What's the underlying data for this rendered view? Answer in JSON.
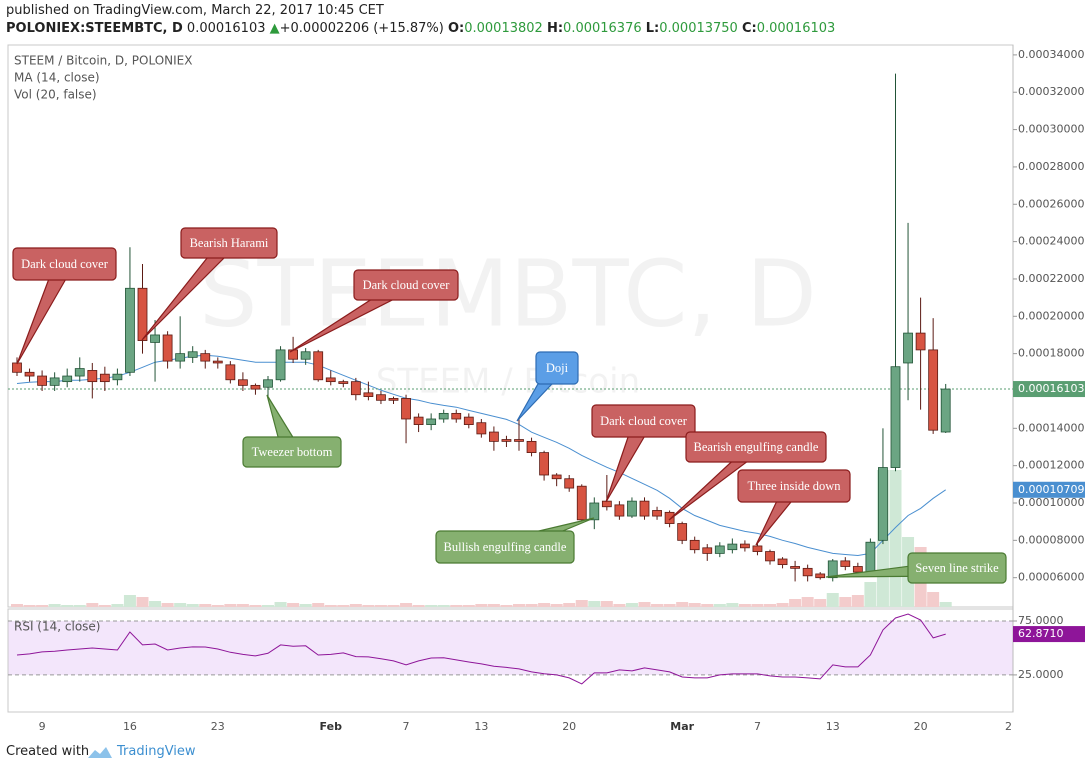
{
  "header": {
    "published": "published on TradingView.com, March 22, 2017 10:45 CET",
    "symbol": "POLONIEX:STEEMBTC, D",
    "last": "0.00016103",
    "arrow": "▲",
    "change": "+0.00002206 (+15.87%)",
    "ohlc": [
      {
        "label": "O:",
        "value": "0.00013802"
      },
      {
        "label": "H:",
        "value": "0.00016376"
      },
      {
        "label": "L:",
        "value": "0.00013750"
      },
      {
        "label": "C:",
        "value": "0.00016103"
      }
    ]
  },
  "watermark": {
    "main": "STEEMBTC, D",
    "sub": "STEEM / Bitcoin"
  },
  "chart_data": {
    "type": "candlestick",
    "title": "STEEM / Bitcoin, D, POLONIEX",
    "up_color": "#6ba583",
    "up_border": "#225437",
    "down_color": "#d75442",
    "down_border": "#5b1a13",
    "categories": [
      null,
      null,
      "9",
      null,
      null,
      null,
      null,
      null,
      null,
      "16",
      null,
      null,
      null,
      null,
      null,
      null,
      "23",
      null,
      null,
      null,
      null,
      null,
      null,
      null,
      null,
      "Feb",
      null,
      null,
      null,
      null,
      null,
      "7",
      null,
      null,
      null,
      null,
      null,
      "13",
      null,
      null,
      null,
      null,
      null,
      null,
      "20",
      null,
      null,
      null,
      null,
      null,
      null,
      null,
      null,
      "Mar",
      null,
      null,
      null,
      null,
      null,
      "7",
      null,
      null,
      null,
      null,
      null,
      "13",
      null,
      null,
      null,
      null,
      null,
      null,
      "20",
      null,
      null,
      null,
      null,
      null,
      null,
      "2"
    ],
    "open": [
      0.000175,
      0.00017,
      0.000168,
      0.000163,
      0.000165,
      0.000168,
      0.000171,
      0.000169,
      0.000166,
      0.00017,
      0.000215,
      0.000186,
      0.00019,
      0.000176,
      0.000178,
      0.00018,
      0.000176,
      0.000174,
      0.000166,
      0.000163,
      0.000162,
      0.000166,
      0.000182,
      0.000177,
      0.000181,
      0.000167,
      0.000165,
      0.000165,
      0.000159,
      0.000158,
      0.000156,
      0.000156,
      0.000146,
      0.000142,
      0.000145,
      0.000148,
      0.000146,
      0.000143,
      0.000138,
      0.000134,
      0.000134,
      0.000133,
      0.000127,
      0.000115,
      0.000113,
      0.000109,
      9.1e-05,
      0.000101,
      9.9e-05,
      9.3e-05,
      0.000101,
      9.6e-05,
      9.5e-05,
      8.9e-05,
      8e-05,
      7.6e-05,
      7.3e-05,
      7.5e-05,
      7.8e-05,
      7.7e-05,
      7.4e-05,
      7e-05,
      6.6e-05,
      6.5e-05,
      6.2e-05,
      6e-05,
      6.9e-05,
      6.6e-05,
      6.3e-05,
      8e-05,
      0.000119,
      0.000175,
      0.000191,
      0.000182,
      0.00013802,
      null,
      null,
      null,
      null,
      null
    ],
    "high": [
      0.000178,
      0.000172,
      0.000171,
      0.00017,
      0.000172,
      0.000178,
      0.000175,
      0.000173,
      0.000172,
      0.000237,
      0.000228,
      0.000198,
      0.000192,
      0.0002,
      0.000184,
      0.000182,
      0.000178,
      0.000176,
      0.00017,
      0.000164,
      0.000168,
      0.000184,
      0.000189,
      0.000183,
      0.000182,
      0.000171,
      0.000166,
      0.000167,
      0.000165,
      0.00016,
      0.000157,
      0.000158,
      0.000148,
      0.000148,
      0.00015,
      0.00015,
      0.000148,
      0.000145,
      0.000141,
      0.000136,
      0.000145,
      0.000135,
      0.000128,
      0.000116,
      0.000115,
      0.00011,
      0.000103,
      0.000115,
      0.000101,
      0.000103,
      0.000103,
      9.8e-05,
      9.6e-05,
      9e-05,
      8.2e-05,
      7.8e-05,
      7.9e-05,
      8.1e-05,
      8e-05,
      7.9e-05,
      7.5e-05,
      7.1e-05,
      6.9e-05,
      6.7e-05,
      6.3e-05,
      7e-05,
      7.1e-05,
      6.8e-05,
      8.1e-05,
      0.00014,
      0.00033,
      0.00025,
      0.00021,
      0.000199,
      0.00016376,
      null,
      null,
      null,
      null,
      null
    ],
    "low": [
      0.000168,
      0.000165,
      0.00016,
      0.00016,
      0.000162,
      0.000165,
      0.000156,
      0.00016,
      0.000163,
      0.000168,
      0.00018,
      0.000165,
      0.000172,
      0.000172,
      0.000175,
      0.000172,
      0.000172,
      0.000164,
      0.00016,
      0.000158,
      0.000157,
      0.000165,
      0.000175,
      0.000174,
      0.000165,
      0.000163,
      0.000162,
      0.000155,
      0.000155,
      0.000153,
      0.000153,
      0.000132,
      0.000138,
      0.000139,
      0.000143,
      0.000143,
      0.00014,
      0.000135,
      0.000128,
      0.00013,
      0.000128,
      0.000125,
      0.000112,
      0.000109,
      0.000106,
      9e-05,
      8.6e-05,
      9.6e-05,
      9.1e-05,
      9.2e-05,
      9.1e-05,
      9.1e-05,
      8.7e-05,
      7.8e-05,
      7.3e-05,
      6.9e-05,
      7.1e-05,
      7.3e-05,
      7.4e-05,
      7.2e-05,
      6.7e-05,
      6.5e-05,
      5.8e-05,
      5.8e-05,
      5.9e-05,
      5.8e-05,
      6.4e-05,
      6.1e-05,
      6.1e-05,
      7.8e-05,
      0.000117,
      0.000155,
      0.00015,
      0.000137,
      0.0001375,
      null,
      null,
      null,
      null,
      null
    ],
    "close": [
      0.00017,
      0.000168,
      0.000163,
      0.000167,
      0.000168,
      0.000172,
      0.000165,
      0.000165,
      0.000169,
      0.000215,
      0.000187,
      0.00019,
      0.000176,
      0.00018,
      0.000181,
      0.000176,
      0.000175,
      0.000166,
      0.000163,
      0.000161,
      0.000166,
      0.000182,
      0.000177,
      0.000181,
      0.000166,
      0.000165,
      0.000164,
      0.000158,
      0.000157,
      0.000155,
      0.000155,
      0.000145,
      0.000142,
      0.000145,
      0.000148,
      0.000145,
      0.000142,
      0.000137,
      0.000133,
      0.000133,
      0.000133,
      0.000127,
      0.000115,
      0.000113,
      0.000108,
      9.1e-05,
      0.0001,
      9.8e-05,
      9.3e-05,
      0.000101,
      9.3e-05,
      9.3e-05,
      8.9e-05,
      8e-05,
      7.5e-05,
      7.3e-05,
      7.7e-05,
      7.8e-05,
      7.6e-05,
      7.4e-05,
      6.9e-05,
      6.7e-05,
      6.5e-05,
      6.1e-05,
      6e-05,
      6.9e-05,
      6.6e-05,
      6.3e-05,
      7.9e-05,
      0.000119,
      0.000173,
      0.000191,
      0.000182,
      0.000139,
      0.00016103,
      null,
      null,
      null,
      null,
      null
    ],
    "ylim": [
      4.43e-05,
      0.0003453
    ],
    "yticks": [
      {
        "value": 6e-05,
        "label": "0.00006000"
      },
      {
        "value": 8e-05,
        "label": "0.00008000"
      },
      {
        "value": 0.0001,
        "label": "0.00010000"
      },
      {
        "value": 0.00012,
        "label": "0.00012000"
      },
      {
        "value": 0.00014,
        "label": "0.00014000"
      },
      {
        "value": 0.00016,
        "label": "0.00016000"
      },
      {
        "value": 0.00018,
        "label": "0.00018000"
      },
      {
        "value": 0.0002,
        "label": "0.00020000"
      },
      {
        "value": 0.00022,
        "label": "0.00022000"
      },
      {
        "value": 0.00024,
        "label": "0.00024000"
      },
      {
        "value": 0.00026,
        "label": "0.00026000"
      },
      {
        "value": 0.00028,
        "label": "0.00028000"
      },
      {
        "value": 0.0003,
        "label": "0.00030000"
      },
      {
        "value": 0.00032,
        "label": "0.00032000"
      },
      {
        "value": 0.00034,
        "label": "0.00034000"
      }
    ],
    "grid": false,
    "last_price": {
      "value": 0.00016103,
      "label": "0.00016103",
      "color": "#5a9e72"
    },
    "ma": {
      "name": "MA (14, close)",
      "color": "#4a8fd0",
      "last_label": {
        "value": 0.00010709,
        "label": "0.00010709"
      },
      "values": [
        0.000164,
        0.0001647,
        0.000165,
        0.000165,
        0.0001657,
        0.0001657,
        0.0001663,
        0.0001668,
        0.0001679,
        0.00017,
        0.0001727,
        0.0001754,
        0.0001765,
        0.0001775,
        0.0001786,
        0.0001791,
        0.0001786,
        0.0001775,
        0.0001765,
        0.0001754,
        0.0001754,
        0.0001754,
        0.0001754,
        0.0001754,
        0.0001738,
        0.0001711,
        0.0001684,
        0.0001657,
        0.0001631,
        0.0001604,
        0.0001582,
        0.0001561,
        0.000155,
        0.0001534,
        0.0001523,
        0.0001513,
        0.0001496,
        0.000148,
        0.0001464,
        0.0001448,
        0.0001421,
        0.0001379,
        0.0001352,
        0.0001325,
        0.0001293,
        0.0001255,
        0.0001223,
        0.0001191,
        0.0001164,
        0.0001132,
        0.00011,
        0.0001068,
        0.0001025,
        9.71e-05,
        9.33e-05,
        9.07e-05,
        8.8e-05,
        8.64e-05,
        8.48e-05,
        8.37e-05,
        8.21e-05,
        8e-05,
        7.83e-05,
        7.62e-05,
        7.46e-05,
        7.3e-05,
        7.24e-05,
        7.19e-05,
        7.3e-05,
        8e-05,
        8.69e-05,
        9.33e-05,
        9.71e-05,
        0.0001025,
        0.00010709,
        null,
        null,
        null,
        null,
        null
      ]
    },
    "volume": {
      "name": "Vol (20, false)",
      "up_color": "#cfe8d6",
      "down_color": "#f3cccc",
      "values": [
        3,
        2,
        2,
        3,
        2,
        2,
        4,
        2,
        3,
        12,
        10,
        6,
        4,
        4,
        3,
        3,
        2,
        3,
        3,
        2,
        2,
        5,
        4,
        3,
        4,
        2,
        2,
        3,
        2,
        2,
        2,
        4,
        2,
        2,
        2,
        2,
        2,
        3,
        3,
        2,
        3,
        3,
        4,
        3,
        4,
        7,
        6,
        6,
        3,
        4,
        5,
        3,
        3,
        5,
        4,
        3,
        3,
        4,
        3,
        3,
        3,
        4,
        8,
        10,
        8,
        14,
        10,
        12,
        25,
        137,
        137,
        70,
        60,
        15,
        5,
        null,
        null,
        null,
        null,
        null
      ]
    },
    "rsi": {
      "name": "RSI (14, close)",
      "color": "#8e1599",
      "band_color": "#f3e6fb",
      "ylim": [
        -9.4,
        85.2
      ],
      "yticks": [
        {
          "value": 25,
          "label": "25.0000"
        },
        {
          "value": 75,
          "label": "75.0000"
        }
      ],
      "last_label": {
        "value": 62.871,
        "label": "62.8710"
      },
      "values": [
        43.5,
        44.5,
        46.3,
        47,
        48.1,
        49,
        50,
        49,
        48.1,
        64.8,
        52.8,
        53.7,
        48.1,
        50,
        51,
        50.9,
        49,
        46,
        44,
        42.6,
        45,
        52.8,
        51.5,
        52,
        43.5,
        44,
        45.4,
        42,
        41.7,
        40,
        38,
        34.3,
        38,
        40.7,
        41,
        38.9,
        37,
        35.2,
        33,
        32,
        30.6,
        27.8,
        26,
        25,
        22.2,
        16.7,
        26.9,
        26.9,
        29.6,
        28.7,
        31.5,
        29.6,
        27.8,
        23.1,
        22.2,
        22.2,
        25,
        25.9,
        25.9,
        25.9,
        24.1,
        23.1,
        23.1,
        22.2,
        21.3,
        34.3,
        32.4,
        32.4,
        43.5,
        66.7,
        77.8,
        81.5,
        75.9,
        59.3,
        62.871,
        null,
        null,
        null,
        null,
        null
      ]
    },
    "annotations": [
      {
        "text": "Dark cloud cover",
        "color": "#c96262",
        "border": "#8a1c1c"
      },
      {
        "text": "Bearish Harami",
        "color": "#c96262",
        "border": "#8a1c1c"
      },
      {
        "text": "Dark cloud cover",
        "color": "#c96262",
        "border": "#8a1c1c"
      },
      {
        "text": "Tweezer bottom",
        "color": "#86b070",
        "border": "#4a7a32"
      },
      {
        "text": "Doji",
        "color": "#5b9ee6",
        "border": "#2e6cb3"
      },
      {
        "text": "Dark cloud cover",
        "color": "#c96262",
        "border": "#8a1c1c"
      },
      {
        "text": "Bearish engulfing candle",
        "color": "#c96262",
        "border": "#8a1c1c"
      },
      {
        "text": "Three inside down",
        "color": "#c96262",
        "border": "#8a1c1c"
      },
      {
        "text": "Bullish engulfing candle",
        "color": "#86b070",
        "border": "#4a7a32"
      },
      {
        "text": "Seven line strike",
        "color": "#86b070",
        "border": "#4a7a32"
      }
    ]
  },
  "footer": {
    "created": "Created with",
    "brand": "TradingView"
  }
}
